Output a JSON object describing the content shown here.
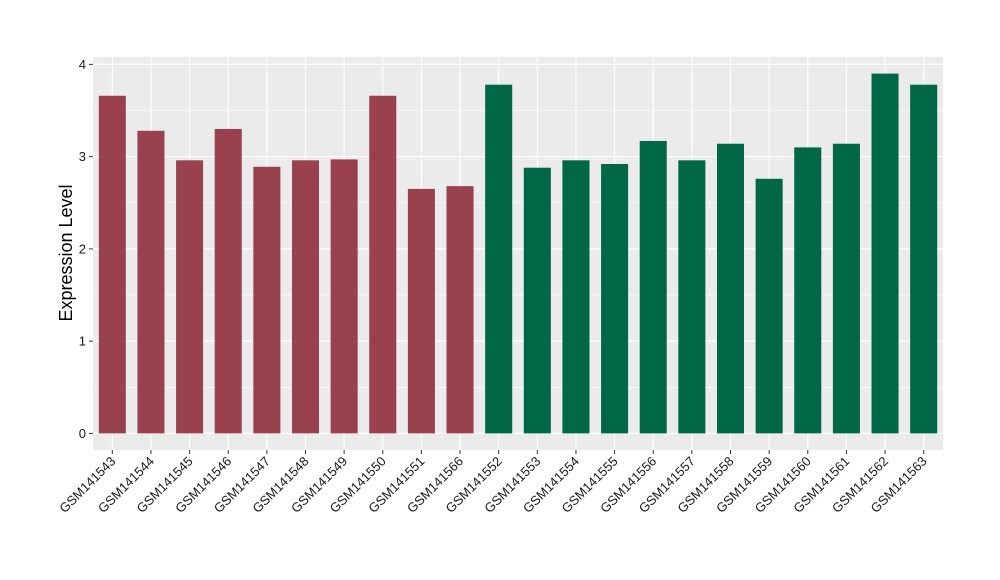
{
  "chart_data": {
    "type": "bar",
    "title": "",
    "xlabel": "",
    "ylabel": "Expression Level",
    "ylim": [
      -0.18,
      4.08
    ],
    "yticks": [
      0,
      1,
      2,
      3,
      4
    ],
    "grid": true,
    "legend": "none",
    "colors": {
      "group1": "#9a4150",
      "group2": "#006846",
      "panel": "#ebebeb",
      "grid": "#ffffff"
    },
    "categories": [
      "GSM141543",
      "GSM141544",
      "GSM141545",
      "GSM141546",
      "GSM141547",
      "GSM141548",
      "GSM141549",
      "GSM141550",
      "GSM141551",
      "GSM141566",
      "GSM141552",
      "GSM141553",
      "GSM141554",
      "GSM141555",
      "GSM141556",
      "GSM141557",
      "GSM141558",
      "GSM141559",
      "GSM141560",
      "GSM141561",
      "GSM141562",
      "GSM141563"
    ],
    "values": [
      3.66,
      3.28,
      2.96,
      3.3,
      2.89,
      2.96,
      2.97,
      3.66,
      2.65,
      2.68,
      3.78,
      2.88,
      2.96,
      2.92,
      3.17,
      2.96,
      3.14,
      2.76,
      3.1,
      3.14,
      3.9,
      3.78
    ],
    "groups": [
      1,
      1,
      1,
      1,
      1,
      1,
      1,
      1,
      1,
      1,
      2,
      2,
      2,
      2,
      2,
      2,
      2,
      2,
      2,
      2,
      2,
      2
    ]
  }
}
